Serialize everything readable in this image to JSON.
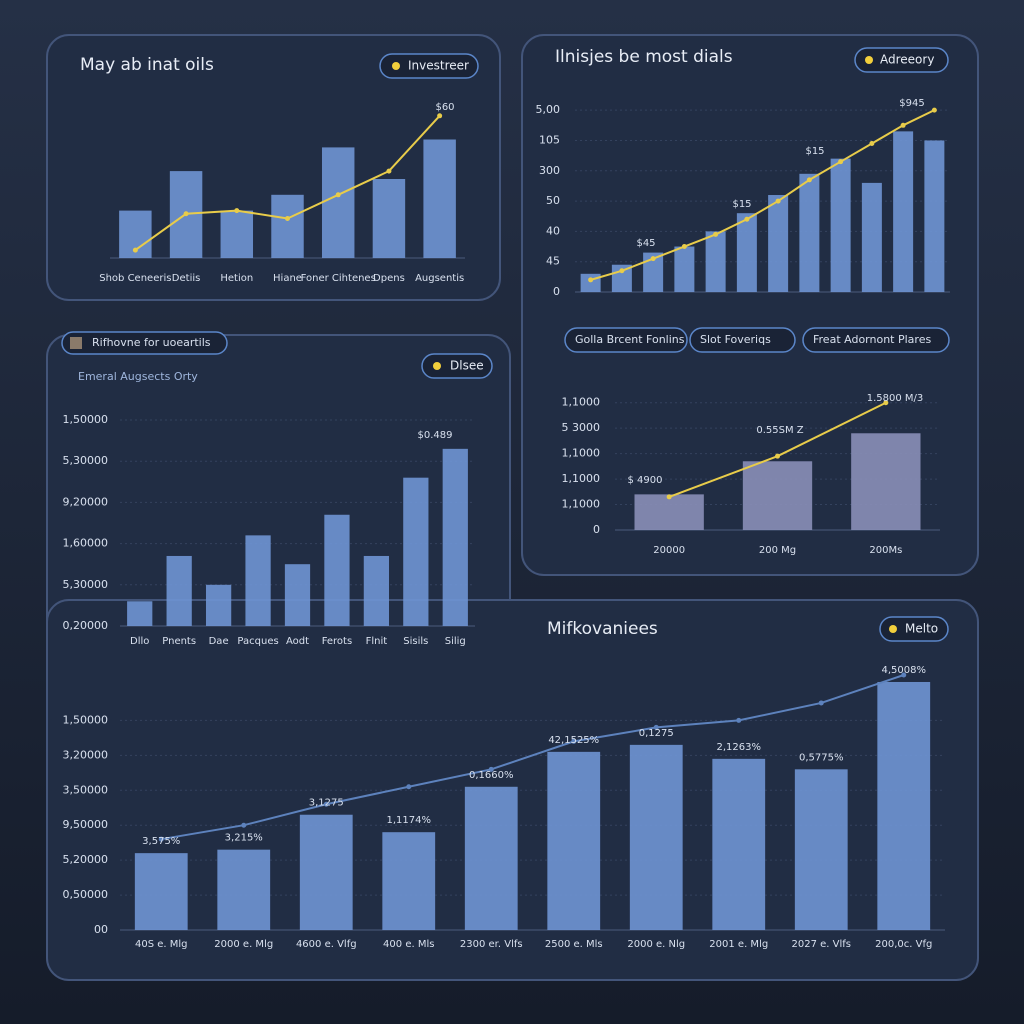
{
  "chart_data": [
    {
      "type": "bar",
      "title": "May ab inat oils",
      "button": "Investreer",
      "categories": [
        "Shob Ceneeris",
        "Detiis",
        "Hetion",
        "Hiane",
        "Foner Cihtenes",
        "Dpens",
        "Augsentis"
      ],
      "ylim": [
        0,
        100
      ],
      "series": [
        {
          "type": "bar",
          "color": "#6f95d4",
          "values": [
            30,
            55,
            30,
            40,
            70,
            50,
            75
          ]
        },
        {
          "type": "line",
          "color": "#e8cc4a",
          "values": [
            5,
            28,
            30,
            25,
            40,
            55,
            90
          ]
        }
      ],
      "annotations": [
        "$60"
      ]
    },
    {
      "type": "bar",
      "title": "Ilnisjes be most dials",
      "button": "Adreeory",
      "ylim": [
        0,
        6.5
      ],
      "yticks": [
        {
          "value": 6,
          "label": "5,00"
        },
        {
          "value": 5,
          "label": "105"
        },
        {
          "value": 4,
          "label": "300"
        },
        {
          "value": 3,
          "label": "50"
        },
        {
          "value": 2,
          "label": "40"
        },
        {
          "value": 1,
          "label": "45"
        },
        0
      ],
      "series": [
        {
          "type": "bar",
          "color": "#6f95d4",
          "values": [
            0.6,
            0.9,
            1.3,
            1.5,
            2.0,
            2.6,
            3.2,
            3.9,
            4.4,
            3.6,
            5.3,
            5.0
          ]
        },
        {
          "type": "line",
          "color": "#e8cc4a",
          "values": [
            0.4,
            0.7,
            1.1,
            1.5,
            1.9,
            2.4,
            3.0,
            3.7,
            4.3,
            4.9,
            5.5,
            6.0
          ]
        }
      ],
      "annotations": [
        "$945",
        "$15",
        "$15",
        "$45"
      ],
      "filters": [
        "Golla Brcent Fonlins",
        "Slot Foveriqs",
        "Freat Adornont Plares"
      ]
    },
    {
      "type": "bar",
      "categories": [
        "20000",
        "200 Mg",
        "200Ms"
      ],
      "ylim": [
        0,
        5.5
      ],
      "yticks": [
        {
          "value": 5,
          "label": "1,1000"
        },
        {
          "value": 4,
          "label": "5 3000"
        },
        {
          "value": 3,
          "label": "1,1000"
        },
        {
          "value": 2,
          "label": "1,1000"
        },
        {
          "value": 1,
          "label": "1,1000"
        },
        0
      ],
      "series": [
        {
          "type": "bar",
          "color": "#8a8fb8",
          "values": [
            1.4,
            2.7,
            3.8
          ]
        },
        {
          "type": "line",
          "color": "#e8cc4a",
          "values": [
            1.3,
            2.9,
            5.0
          ]
        }
      ],
      "annotations": [
        "$ 4900",
        "0.55SM Z",
        "1.5800 M/3"
      ]
    },
    {
      "type": "bar",
      "title": "Rifhovne for uoeartils",
      "subtitle": "Emeral Augsects Orty",
      "button": "Dlsee",
      "categories": [
        "Dllo",
        "Pnents",
        "Dae",
        "Pacques",
        "Aodt",
        "Ferots",
        "Flnit",
        "Sisils",
        "Silig"
      ],
      "ylim": [
        0,
        5
      ],
      "yticks": [
        {
          "value": 5,
          "label": "1,50000"
        },
        {
          "value": 4,
          "label": "5,30000"
        },
        {
          "value": 3,
          "label": "9,20000"
        },
        {
          "value": 2,
          "label": "1,60000"
        },
        {
          "value": 1,
          "label": "5,30000"
        },
        {
          "value": 0,
          "label": "0,20000"
        }
      ],
      "series": [
        {
          "type": "bar",
          "color": "#6f95d4",
          "values": [
            0.6,
            1.7,
            1.0,
            2.2,
            1.5,
            2.7,
            1.7,
            3.6,
            4.3
          ]
        }
      ],
      "annotations": [
        "$0.489"
      ]
    },
    {
      "type": "bar",
      "title": "Mifkovaniees",
      "button": "Melto",
      "categories": [
        "40S e. Mlg",
        "2000 e. Mlg",
        "4600 e. Vlfg",
        "400 e. Mls",
        "2300 er. Vlfs",
        "2500 e. Mls",
        "2000 e. Nlg",
        "2001 e. Mlg",
        "2027 e. Vlfs",
        "200,0c. Vfg"
      ],
      "ylim": [
        0,
        7.3
      ],
      "yticks": [
        {
          "value": 6,
          "label": "1,50000"
        },
        {
          "value": 5,
          "label": "3,20000"
        },
        {
          "value": 4,
          "label": "3,50000"
        },
        {
          "value": 3,
          "label": "9,50000"
        },
        {
          "value": 2,
          "label": "5,20000"
        },
        {
          "value": 1,
          "label": "0,50000"
        },
        {
          "value": 0,
          "label": "00"
        }
      ],
      "series": [
        {
          "type": "bar",
          "color": "#6f95d4",
          "values": [
            2.2,
            2.3,
            3.3,
            2.8,
            4.1,
            5.1,
            5.3,
            4.9,
            4.6,
            7.1
          ]
        },
        {
          "type": "line",
          "color": "#5d82bd",
          "values": [
            2.6,
            3.0,
            3.6,
            4.1,
            4.6,
            5.4,
            5.8,
            6.0,
            6.5,
            7.3
          ]
        }
      ],
      "annotations": [
        "3,575%",
        "3,215%",
        "3,1275",
        "1,1174%",
        "0,1660%",
        "42,1525%",
        "0,1275",
        "2,1263%",
        "0,5775%",
        "4,5008%"
      ]
    }
  ]
}
